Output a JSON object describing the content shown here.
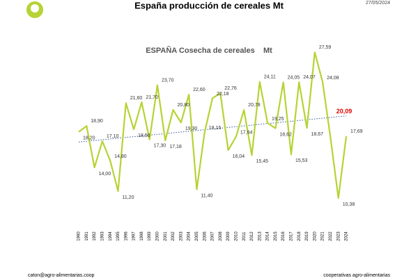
{
  "header": {
    "title": "España producción de cereales Mt",
    "date": "27/05/2024"
  },
  "footer": {
    "email": "caton@agro-alimentarias.coop",
    "org": "cooperativas agro-alimentarias"
  },
  "chart_data": {
    "type": "line",
    "title": "ESPAÑA Cosecha de cereales    Mt",
    "categories": [
      "1990",
      "1991",
      "1992",
      "1993",
      "1994",
      "1995",
      "1996",
      "1997",
      "1998",
      "1999",
      "2000",
      "2001",
      "2002",
      "2003",
      "2004",
      "2005",
      "2006",
      "2007",
      "2008",
      "2009",
      "2010",
      "2011",
      "2012",
      "2013",
      "2014",
      "2015",
      "2016",
      "2017",
      "2018",
      "2019",
      "2020",
      "2021",
      "2022",
      "2023",
      "2024"
    ],
    "series": [
      {
        "name": "Cosecha",
        "color": "#b5d334",
        "values": [
          18.2,
          18.9,
          14.0,
          17.1,
          14.8,
          11.2,
          21.6,
          18.5,
          21.7,
          17.3,
          23.7,
          17.18,
          20.8,
          19.3,
          22.6,
          11.4,
          18.15,
          22.18,
          22.76,
          16.04,
          17.64,
          20.78,
          15.45,
          24.11,
          19.25,
          18.62,
          24.05,
          15.53,
          24.07,
          18.67,
          27.59,
          24.08,
          17.5,
          10.38,
          17.69
        ],
        "value_labels": [
          "18,20",
          "18,90",
          "14,00",
          "17,10",
          "14,80",
          "11,20",
          "21,60",
          "18,50",
          "21,70",
          "17,30",
          "23,70",
          "17,18",
          "20,80",
          "19,30",
          "22,60",
          "11,40",
          "18,15",
          "22,18",
          "22,76",
          "16,04",
          "17,64",
          "20,78",
          "15,45",
          "24,11",
          "19,25",
          "18,62",
          "24,05",
          "15,53",
          "24,07",
          "18,67",
          "27,59",
          "24,08",
          null,
          "10,38",
          "17,69"
        ]
      }
    ],
    "trend": {
      "color": "#2f5597",
      "values": [
        17.0,
        20.09
      ],
      "label": "20,09",
      "label_color": "#e00000"
    },
    "ylim": [
      8,
      30
    ]
  }
}
